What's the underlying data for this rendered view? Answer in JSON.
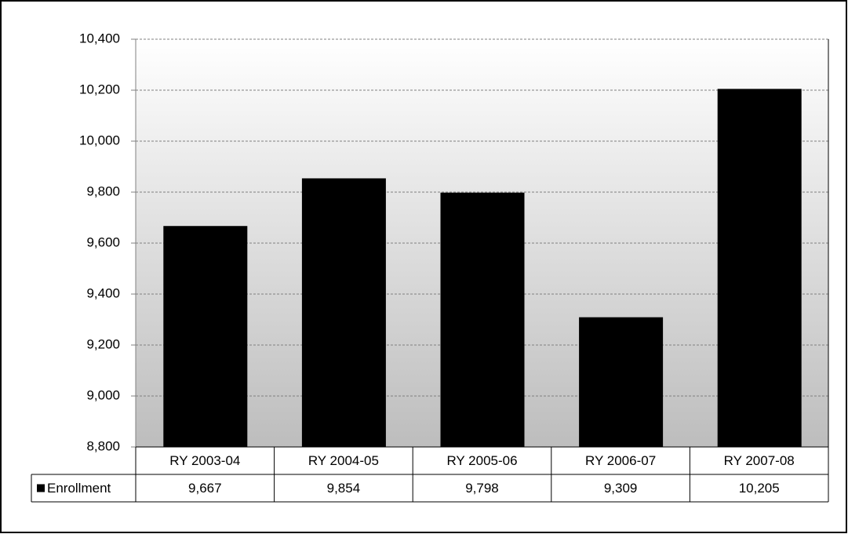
{
  "chart_data": {
    "type": "bar",
    "categories": [
      "RY 2003-04",
      "RY 2004-05",
      "RY 2005-06",
      "RY 2006-07",
      "RY 2007-08"
    ],
    "series": [
      {
        "name": "Enrollment",
        "color": "#000000",
        "values": [
          9667,
          9854,
          9798,
          9309,
          10205
        ],
        "value_labels": [
          "9,667",
          "9,854",
          "9,798",
          "9,309",
          "10,205"
        ]
      }
    ],
    "ylim": [
      8800,
      10400
    ],
    "yticks": [
      {
        "value": 8800,
        "label": "8,800"
      },
      {
        "value": 9000,
        "label": "9,000"
      },
      {
        "value": 9200,
        "label": "9,200"
      },
      {
        "value": 9400,
        "label": "9,400"
      },
      {
        "value": 9600,
        "label": "9,600"
      },
      {
        "value": 9800,
        "label": "9,800"
      },
      {
        "value": 10000,
        "label": "10,000"
      },
      {
        "value": 10200,
        "label": "10,200"
      },
      {
        "value": 10400,
        "label": "10,400"
      }
    ],
    "grid": true
  }
}
